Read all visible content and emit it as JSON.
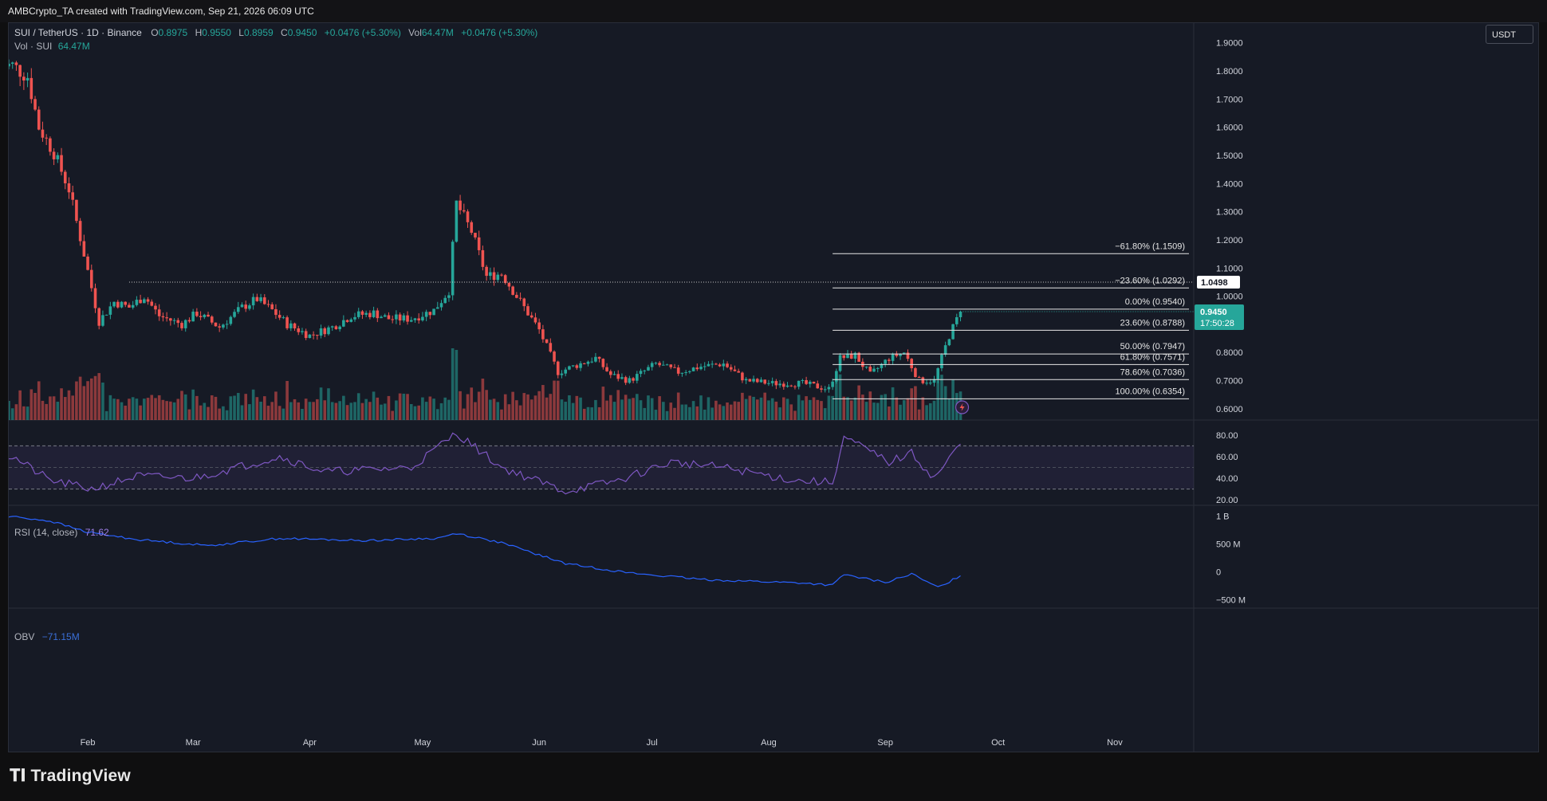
{
  "header": {
    "attribution": "AMBCrypto_TA created with TradingView.com, Sep 21, 2026 06:09 UTC"
  },
  "legend": {
    "symbol": "SUI / TetherUS · 1D · Binance",
    "open_key": "O",
    "open": "0.8975",
    "high_key": "H",
    "high": "0.9550",
    "low_key": "L",
    "low": "0.8959",
    "close_key": "C",
    "close": "0.9450",
    "change": "+0.0476 (+5.30%)",
    "vol_key": "Vol",
    "vol": "64.47M",
    "vol_change": "+0.0476 (+5.30%)"
  },
  "volume_legend": {
    "label": "Vol · SUI",
    "value": "64.47M"
  },
  "rsi_legend": {
    "label": "RSI (14, close)",
    "value": "71.62"
  },
  "obv_legend": {
    "label": "OBV",
    "value": "−71.15M"
  },
  "currency_badge": "USDT",
  "price_axis": {
    "ticks": [
      "1.9000",
      "1.8000",
      "1.7000",
      "1.6000",
      "1.5000",
      "1.4000",
      "1.3000",
      "1.2000",
      "1.1000",
      "1.0000",
      "0.8000",
      "0.7000",
      "0.6000"
    ],
    "ref_label": "1.0498",
    "last_price": "0.9450",
    "countdown": "17:50:28"
  },
  "rsi_axis": {
    "ticks": [
      "80.00",
      "60.00",
      "40.00",
      "20.00"
    ]
  },
  "obv_axis": {
    "ticks": [
      "1 B",
      "500 M",
      "0",
      "−500 M"
    ]
  },
  "time_axis": {
    "labels": [
      "Feb",
      "Mar",
      "Apr",
      "May",
      "Jun",
      "Jul",
      "Aug",
      "Sep",
      "Oct",
      "Nov"
    ]
  },
  "fib_levels": [
    {
      "label": "−61.80% (1.1509)",
      "price": 1.1509
    },
    {
      "label": "−23.60% (1.0292)",
      "price": 1.0292
    },
    {
      "label": "0.00% (0.9540)",
      "price": 0.954
    },
    {
      "label": "23.60% (0.8788)",
      "price": 0.8788
    },
    {
      "label": "50.00% (0.7947)",
      "price": 0.7947
    },
    {
      "label": "61.80% (0.7571)",
      "price": 0.7571
    },
    {
      "label": "78.60% (0.7036)",
      "price": 0.7036
    },
    {
      "label": "100.00% (0.6354)",
      "price": 0.6354
    }
  ],
  "colors": {
    "up": "#26a69a",
    "down": "#ef5350",
    "rsi": "#7e57c2",
    "obv": "#2962ff",
    "fib": "#e6e6e6"
  },
  "brand": "TradingView",
  "chart_data": {
    "type": "candlestick",
    "price_anchors": [
      [
        "2026-01-12",
        1.82
      ],
      [
        "2026-01-16",
        1.78
      ],
      [
        "2026-01-19",
        1.6
      ],
      [
        "2026-01-23",
        1.51
      ],
      [
        "2026-01-27",
        1.38
      ],
      [
        "2026-01-31",
        1.15
      ],
      [
        "2026-02-04",
        0.91
      ],
      [
        "2026-02-08",
        0.98
      ],
      [
        "2026-02-12",
        0.96
      ],
      [
        "2026-02-16",
        1.0
      ],
      [
        "2026-02-20",
        0.93
      ],
      [
        "2026-02-26",
        0.9
      ],
      [
        "2026-03-02",
        0.94
      ],
      [
        "2026-03-08",
        0.89
      ],
      [
        "2026-03-14",
        0.96
      ],
      [
        "2026-03-18",
        0.99
      ],
      [
        "2026-03-22",
        0.95
      ],
      [
        "2026-03-26",
        0.9
      ],
      [
        "2026-04-01",
        0.86
      ],
      [
        "2026-04-07",
        0.89
      ],
      [
        "2026-04-12",
        0.93
      ],
      [
        "2026-04-18",
        0.94
      ],
      [
        "2026-04-22",
        0.92
      ],
      [
        "2026-04-28",
        0.92
      ],
      [
        "2026-05-04",
        0.95
      ],
      [
        "2026-05-08",
        1.02
      ],
      [
        "2026-05-10",
        1.33
      ],
      [
        "2026-05-14",
        1.23
      ],
      [
        "2026-05-18",
        1.07
      ],
      [
        "2026-05-22",
        1.08
      ],
      [
        "2026-05-26",
        1.0
      ],
      [
        "2026-06-01",
        0.88
      ],
      [
        "2026-06-06",
        0.73
      ],
      [
        "2026-06-12",
        0.76
      ],
      [
        "2026-06-16",
        0.78
      ],
      [
        "2026-06-20",
        0.72
      ],
      [
        "2026-06-25",
        0.7
      ],
      [
        "2026-07-02",
        0.76
      ],
      [
        "2026-07-08",
        0.73
      ],
      [
        "2026-07-14",
        0.75
      ],
      [
        "2026-07-20",
        0.76
      ],
      [
        "2026-07-26",
        0.7
      ],
      [
        "2026-08-02",
        0.69
      ],
      [
        "2026-08-10",
        0.69
      ],
      [
        "2026-08-17",
        0.67
      ],
      [
        "2026-08-20",
        0.78
      ],
      [
        "2026-08-24",
        0.79
      ],
      [
        "2026-08-28",
        0.72
      ],
      [
        "2026-09-02",
        0.78
      ],
      [
        "2026-09-06",
        0.8
      ],
      [
        "2026-09-10",
        0.7
      ],
      [
        "2026-09-14",
        0.7
      ],
      [
        "2026-09-18",
        0.86
      ],
      [
        "2026-09-21",
        0.945
      ]
    ],
    "volume_range_m": [
      5,
      110
    ],
    "rsi_anchors": [
      [
        "2026-01-12",
        60
      ],
      [
        "2026-01-22",
        38
      ],
      [
        "2026-02-02",
        30
      ],
      [
        "2026-02-14",
        42
      ],
      [
        "2026-03-01",
        40
      ],
      [
        "2026-03-24",
        60
      ],
      [
        "2026-04-05",
        46
      ],
      [
        "2026-04-28",
        50
      ],
      [
        "2026-05-10",
        82
      ],
      [
        "2026-05-22",
        50
      ],
      [
        "2026-06-08",
        28
      ],
      [
        "2026-06-22",
        38
      ],
      [
        "2026-07-06",
        55
      ],
      [
        "2026-07-20",
        50
      ],
      [
        "2026-08-08",
        38
      ],
      [
        "2026-08-18",
        36
      ],
      [
        "2026-08-21",
        78
      ],
      [
        "2026-09-02",
        55
      ],
      [
        "2026-09-08",
        63
      ],
      [
        "2026-09-14",
        40
      ],
      [
        "2026-09-21",
        71.62
      ]
    ],
    "obv_anchors_m": [
      [
        "2026-01-12",
        990
      ],
      [
        "2026-01-22",
        910
      ],
      [
        "2026-02-01",
        710
      ],
      [
        "2026-02-14",
        580
      ],
      [
        "2026-03-05",
        470
      ],
      [
        "2026-03-24",
        600
      ],
      [
        "2026-04-15",
        560
      ],
      [
        "2026-05-05",
        600
      ],
      [
        "2026-05-10",
        690
      ],
      [
        "2026-05-22",
        520
      ],
      [
        "2026-06-08",
        150
      ],
      [
        "2026-06-25",
        -20
      ],
      [
        "2026-07-15",
        -140
      ],
      [
        "2026-08-10",
        -200
      ],
      [
        "2026-08-18",
        -240
      ],
      [
        "2026-08-21",
        -50
      ],
      [
        "2026-09-01",
        -190
      ],
      [
        "2026-09-08",
        -40
      ],
      [
        "2026-09-15",
        -280
      ],
      [
        "2026-09-21",
        -71.15
      ]
    ],
    "ylim_price": [
      0.56,
      1.97
    ],
    "ylim_rsi": [
      15,
      88
    ],
    "ylim_obv_m": [
      -650,
      1120
    ],
    "x_range": [
      "2026-01-11",
      "2026-11-22"
    ],
    "rsi_bands": [
      70,
      50,
      30
    ],
    "ref_line": 1.0498
  }
}
